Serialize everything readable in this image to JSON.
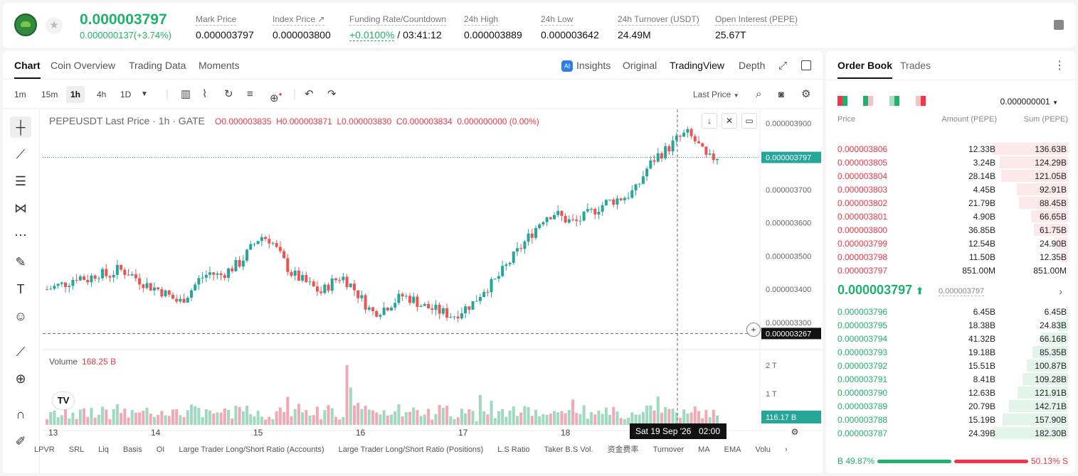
{
  "header": {
    "last_price": "0.000003797",
    "change": "0.000000137(+3.74%)",
    "stats": [
      {
        "label": "Mark Price",
        "value": "0.000003797"
      },
      {
        "label": "Index Price ↗",
        "value": "0.000003800"
      },
      {
        "label": "Funding Rate/Countdown",
        "rate": "+0.0100%",
        "countdown": " / 03:41:12"
      },
      {
        "label": "24h High",
        "value": "0.000003889"
      },
      {
        "label": "24h Low",
        "value": "0.000003642"
      },
      {
        "label": "24h Turnover (USDT)",
        "value": "24.49M"
      },
      {
        "label": "Open Interest (PEPE)",
        "value": "25.67T"
      }
    ]
  },
  "chart_tabs": [
    "Chart",
    "Coin Overview",
    "Trading Data",
    "Moments"
  ],
  "view_options": {
    "insights": "Insights",
    "ai_badge": "AI",
    "original": "Original",
    "tradingview": "TradingView",
    "depth": "Depth"
  },
  "timeframes": [
    "1m",
    "15m",
    "1h",
    "4h",
    "1D"
  ],
  "price_source": "Last Price",
  "chart_legend": {
    "symbol": "PEPEUSDT Last Price · 1h · GATE",
    "o": "O0.000003835",
    "h": "H0.000003871",
    "l": "L0.000003830",
    "c": "C0.000003834",
    "chg": "0.000000000 (0.00%)"
  },
  "volume_legend": {
    "label": "Volume",
    "value": "168.25 B"
  },
  "crosshair": {
    "date_label": "Sat 19 Sep '26",
    "time_label": "02:00"
  },
  "chart_data": {
    "type": "candlestick",
    "x_labels": [
      "13",
      "14",
      "15",
      "16",
      "17",
      "18"
    ],
    "y_ticks": [
      "0.000003900",
      "0.000003800",
      "0.000003700",
      "0.000003600",
      "0.000003500",
      "0.000003400",
      "0.000003300"
    ],
    "ylim": [
      3.27e-06,
      3.92e-06
    ],
    "last_price_label": "0.000003797",
    "last_price": 3.797e-06,
    "crosshair_price_label": "0.000003267",
    "crosshair_price": 3.267e-06,
    "volume_ticks": [
      "2 T",
      "1 T"
    ],
    "volume_last_label": "116.17 B",
    "key_prices": [
      3.4,
      3.41,
      3.42,
      3.44,
      3.43,
      3.45,
      3.44,
      3.46,
      3.45,
      3.43,
      3.41,
      3.4,
      3.38,
      3.36,
      3.39,
      3.43,
      3.45,
      3.44,
      3.46,
      3.48,
      3.52,
      3.56,
      3.55,
      3.5,
      3.45,
      3.43,
      3.41,
      3.39,
      3.42,
      3.44,
      3.41,
      3.37,
      3.33,
      3.34,
      3.36,
      3.38,
      3.37,
      3.35,
      3.34,
      3.33,
      3.32,
      3.34,
      3.36,
      3.4,
      3.42,
      3.46,
      3.5,
      3.54,
      3.58,
      3.62,
      3.63,
      3.61,
      3.6,
      3.62,
      3.64,
      3.66,
      3.67,
      3.68,
      3.7,
      3.76,
      3.8,
      3.82,
      3.85,
      3.87,
      3.84,
      3.79,
      3.8
    ]
  },
  "draw_tools": [
    "crosshair-icon",
    "trendline-icon",
    "fib-icon",
    "pattern-icon",
    "projection-icon",
    "brush-icon",
    "text-icon",
    "emoji-icon",
    "ruler-icon",
    "zoom-icon",
    "magnet-icon",
    "pencil-icon"
  ],
  "bottom_tabs": [
    "LPVR",
    "SRL",
    "Liq",
    "Basis",
    "OI",
    "Large Trader Long/Short Ratio (Accounts)",
    "Large Trader Long/Short Ratio (Positions)",
    "L.S Ratio",
    "Taker B.S Vol.",
    "资金费率",
    "Turnover",
    "MA",
    "EMA",
    "Volu"
  ],
  "order_book": {
    "tabs": [
      "Order Book",
      "Trades"
    ],
    "precision": "0.000000001",
    "headers": {
      "price": "Price",
      "amount": "Amount (PEPE)",
      "sum": "Sum (PEPE)"
    },
    "asks": [
      {
        "price": "0.000003806",
        "amount": "12.33B",
        "sum": "136.63B",
        "depth": 1.0
      },
      {
        "price": "0.000003805",
        "amount": "3.24B",
        "sum": "124.29B",
        "depth": 0.91
      },
      {
        "price": "0.000003804",
        "amount": "28.14B",
        "sum": "121.05B",
        "depth": 0.89
      },
      {
        "price": "0.000003803",
        "amount": "4.45B",
        "sum": "92.91B",
        "depth": 0.68
      },
      {
        "price": "0.000003802",
        "amount": "21.79B",
        "sum": "88.45B",
        "depth": 0.65
      },
      {
        "price": "0.000003801",
        "amount": "4.90B",
        "sum": "66.65B",
        "depth": 0.49
      },
      {
        "price": "0.000003800",
        "amount": "36.85B",
        "sum": "61.75B",
        "depth": 0.45
      },
      {
        "price": "0.000003799",
        "amount": "12.54B",
        "sum": "24.90B",
        "depth": 0.18
      },
      {
        "price": "0.000003798",
        "amount": "11.50B",
        "sum": "12.35B",
        "depth": 0.09
      },
      {
        "price": "0.000003797",
        "amount": "851.00M",
        "sum": "851.00M",
        "depth": 0.01
      }
    ],
    "mid_price": "0.000003797",
    "mid_arrow": "⬆",
    "mid_ref": "0.000003797",
    "bids": [
      {
        "price": "0.000003796",
        "amount": "6.45B",
        "sum": "6.45B",
        "depth": 0.03
      },
      {
        "price": "0.000003795",
        "amount": "18.38B",
        "sum": "24.83B",
        "depth": 0.14
      },
      {
        "price": "0.000003794",
        "amount": "41.32B",
        "sum": "66.16B",
        "depth": 0.36
      },
      {
        "price": "0.000003793",
        "amount": "19.18B",
        "sum": "85.35B",
        "depth": 0.47
      },
      {
        "price": "0.000003792",
        "amount": "15.51B",
        "sum": "100.87B",
        "depth": 0.55
      },
      {
        "price": "0.000003791",
        "amount": "8.41B",
        "sum": "109.28B",
        "depth": 0.6
      },
      {
        "price": "0.000003790",
        "amount": "12.63B",
        "sum": "121.91B",
        "depth": 0.67
      },
      {
        "price": "0.000003789",
        "amount": "20.79B",
        "sum": "142.71B",
        "depth": 0.78
      },
      {
        "price": "0.000003788",
        "amount": "15.19B",
        "sum": "157.90B",
        "depth": 0.87
      },
      {
        "price": "0.000003787",
        "amount": "24.39B",
        "sum": "182.30B",
        "depth": 1.0
      }
    ],
    "buy_ratio": "B 49.87%",
    "sell_ratio": "50.13% S"
  }
}
